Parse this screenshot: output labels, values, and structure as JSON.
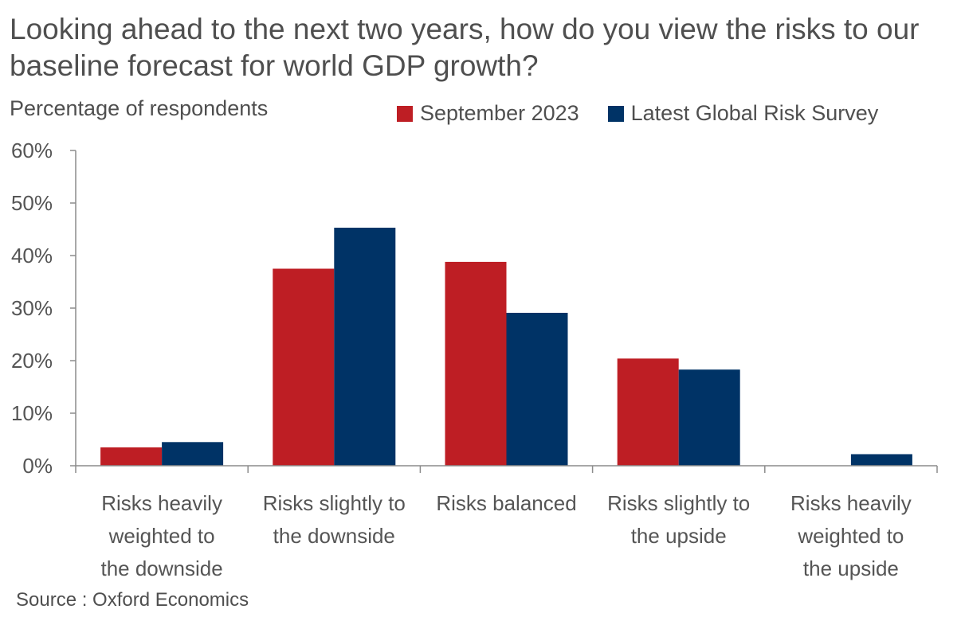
{
  "chart_data": {
    "type": "bar",
    "title": "Looking ahead to the next two years, how do you view the risks to our baseline forecast for world GDP growth?",
    "ylabel": "Percentage of respondents",
    "categories": [
      "Risks heavily weighted to the downside",
      "Risks slightly to the downside",
      "Risks balanced",
      "Risks slightly to the upside",
      "Risks heavily weighted to the upside"
    ],
    "category_lines": [
      [
        "Risks heavily",
        "weighted to",
        "the downside"
      ],
      [
        "Risks slightly to",
        "the downside"
      ],
      [
        "Risks balanced"
      ],
      [
        "Risks slightly to",
        "the upside"
      ],
      [
        "Risks heavily",
        "weighted to",
        "the upside"
      ]
    ],
    "series": [
      {
        "name": "September 2023",
        "color": "#be1e24",
        "values": [
          3.5,
          37.5,
          38.8,
          20.4,
          0
        ]
      },
      {
        "name": "Latest Global Risk Survey",
        "color": "#003366",
        "values": [
          4.5,
          45.3,
          29.1,
          18.3,
          2.2
        ]
      }
    ],
    "ylim": [
      0,
      60
    ],
    "yticks": [
      0,
      10,
      20,
      30,
      40,
      50,
      60
    ],
    "ytick_labels": [
      "0%",
      "10%",
      "20%",
      "30%",
      "40%",
      "50%",
      "60%"
    ],
    "legend_position": "top-right",
    "grid": false
  },
  "source": "Source : Oxford Economics"
}
